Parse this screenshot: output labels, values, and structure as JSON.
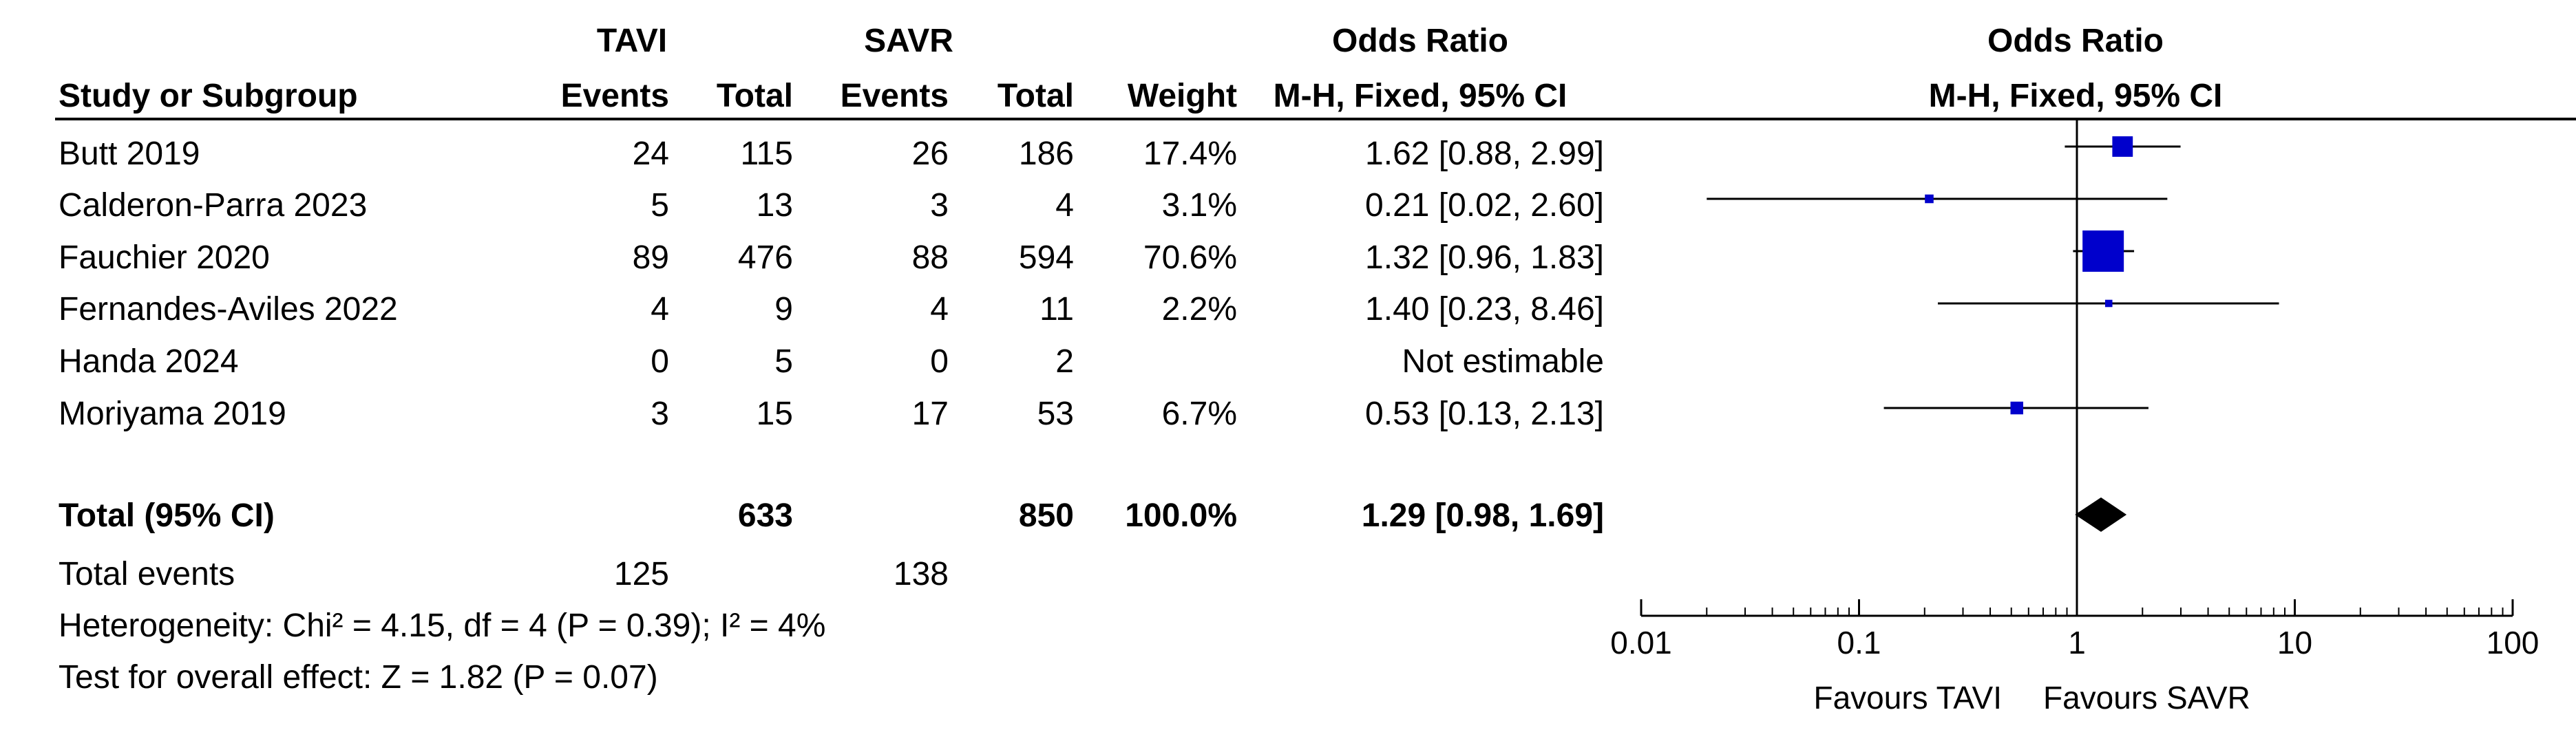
{
  "headers": {
    "group1": "TAVI",
    "group2": "SAVR",
    "or_table": "Odds Ratio",
    "or_plot": "Odds Ratio",
    "study": "Study or Subgroup",
    "events1": "Events",
    "total1": "Total",
    "events2": "Events",
    "total2": "Total",
    "weight": "Weight",
    "method_table": "M-H, Fixed, 95% CI",
    "method_plot": "M-H, Fixed, 95% CI"
  },
  "rows": [
    {
      "study": "Butt 2019",
      "e1": "24",
      "n1": "115",
      "e2": "26",
      "n2": "186",
      "weight": "17.4%",
      "ci": "1.62 [0.88, 2.99]"
    },
    {
      "study": "Calderon-Parra 2023",
      "e1": "5",
      "n1": "13",
      "e2": "3",
      "n2": "4",
      "weight": "3.1%",
      "ci": "0.21 [0.02, 2.60]"
    },
    {
      "study": "Fauchier 2020",
      "e1": "89",
      "n1": "476",
      "e2": "88",
      "n2": "594",
      "weight": "70.6%",
      "ci": "1.32 [0.96, 1.83]"
    },
    {
      "study": "Fernandes-Aviles 2022",
      "e1": "4",
      "n1": "9",
      "e2": "4",
      "n2": "11",
      "weight": "2.2%",
      "ci": "1.40 [0.23, 8.46]"
    },
    {
      "study": "Handa 2024",
      "e1": "0",
      "n1": "5",
      "e2": "0",
      "n2": "2",
      "weight": "",
      "ci": "Not estimable"
    },
    {
      "study": "Moriyama 2019",
      "e1": "3",
      "n1": "15",
      "e2": "17",
      "n2": "53",
      "weight": "6.7%",
      "ci": "0.53 [0.13, 2.13]"
    }
  ],
  "total": {
    "label": "Total (95% CI)",
    "n1": "633",
    "n2": "850",
    "weight": "100.0%",
    "ci": "1.29 [0.98, 1.69]"
  },
  "total_events": {
    "label": "Total events",
    "e1": "125",
    "e2": "138"
  },
  "heterogeneity": "Heterogeneity: Chi² = 4.15, df = 4 (P = 0.39); I² = 4%",
  "overall_effect": "Test for overall effect: Z = 1.82 (P = 0.07)",
  "favours_left": "Favours TAVI",
  "favours_right": "Favours SAVR",
  "colors": {
    "marker": "#0000cc",
    "diamond": "#000000",
    "line": "#000000"
  },
  "chart_data": {
    "type": "forest",
    "x_scale": "log",
    "xlim": [
      0.01,
      100
    ],
    "ticks": [
      {
        "value": 0.01,
        "label": "0.01"
      },
      {
        "value": 0.1,
        "label": "0.1"
      },
      {
        "value": 1,
        "label": "1"
      },
      {
        "value": 10,
        "label": "10"
      },
      {
        "value": 100,
        "label": "100"
      }
    ],
    "studies": [
      {
        "name": "Butt 2019",
        "or": 1.62,
        "lo": 0.88,
        "hi": 2.99,
        "weight": 17.4
      },
      {
        "name": "Calderon-Parra 2023",
        "or": 0.21,
        "lo": 0.02,
        "hi": 2.6,
        "weight": 3.1
      },
      {
        "name": "Fauchier 2020",
        "or": 1.32,
        "lo": 0.96,
        "hi": 1.83,
        "weight": 70.6
      },
      {
        "name": "Fernandes-Aviles 2022",
        "or": 1.4,
        "lo": 0.23,
        "hi": 8.46,
        "weight": 2.2
      },
      {
        "name": "Handa 2024",
        "or": null,
        "lo": null,
        "hi": null,
        "weight": null
      },
      {
        "name": "Moriyama 2019",
        "or": 0.53,
        "lo": 0.13,
        "hi": 2.13,
        "weight": 6.7
      }
    ],
    "pooled": {
      "or": 1.29,
      "lo": 0.98,
      "hi": 1.69
    }
  }
}
